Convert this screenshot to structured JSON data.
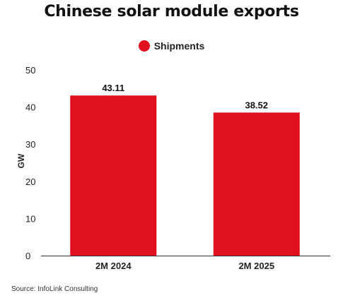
{
  "chart_data": {
    "type": "bar",
    "title": "Chinese solar module exports",
    "categories": [
      "2M 2024",
      "2M 2025"
    ],
    "series": [
      {
        "name": "Shipments",
        "values": [
          43.11,
          38.52
        ],
        "color": "#e0101c"
      }
    ],
    "data_labels": [
      "43.11",
      "38.52"
    ],
    "xlabel": "",
    "ylabel": "GW",
    "ylim": [
      0,
      50
    ],
    "yticks": [
      0,
      10,
      20,
      30,
      40,
      50
    ],
    "grid": false,
    "legend_position": "top-center",
    "source": "Source: InfoLink Consulting"
  }
}
